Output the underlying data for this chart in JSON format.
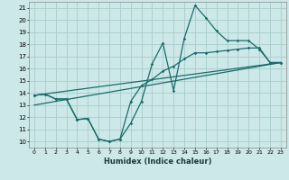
{
  "xlabel": "Humidex (Indice chaleur)",
  "xlim": [
    -0.5,
    23.5
  ],
  "ylim": [
    9.5,
    21.5
  ],
  "xticks": [
    0,
    1,
    2,
    3,
    4,
    5,
    6,
    7,
    8,
    9,
    10,
    11,
    12,
    13,
    14,
    15,
    16,
    17,
    18,
    19,
    20,
    21,
    22,
    23
  ],
  "yticks": [
    10,
    11,
    12,
    13,
    14,
    15,
    16,
    17,
    18,
    19,
    20,
    21
  ],
  "bg_color": "#cce8e8",
  "grid_color": "#aacccc",
  "line_color": "#1a6b6b",
  "line1_x": [
    0,
    1,
    2,
    3,
    4,
    5,
    6,
    7,
    8,
    9,
    10,
    11,
    12,
    13,
    14,
    15,
    16,
    17,
    18,
    19,
    20,
    21,
    22,
    23
  ],
  "line1_y": [
    13.8,
    13.9,
    13.5,
    13.5,
    11.8,
    11.9,
    10.2,
    10.0,
    10.2,
    11.5,
    13.3,
    16.4,
    18.1,
    14.2,
    18.5,
    21.2,
    20.2,
    19.1,
    18.3,
    18.3,
    18.3,
    17.6,
    16.5,
    16.5
  ],
  "line2_x": [
    0,
    1,
    2,
    3,
    4,
    5,
    6,
    7,
    8,
    9,
    10,
    11,
    12,
    13,
    14,
    15,
    16,
    17,
    18,
    19,
    20,
    21,
    22,
    23
  ],
  "line2_y": [
    13.8,
    13.9,
    13.5,
    13.5,
    11.8,
    11.9,
    10.2,
    10.0,
    10.2,
    13.3,
    14.6,
    15.1,
    15.8,
    16.2,
    16.8,
    17.3,
    17.3,
    17.4,
    17.5,
    17.6,
    17.7,
    17.7,
    16.5,
    16.5
  ],
  "line3_x": [
    0,
    23
  ],
  "line3_y": [
    13.8,
    16.5
  ],
  "line4_x": [
    0,
    23
  ],
  "line4_y": [
    13.0,
    16.5
  ]
}
